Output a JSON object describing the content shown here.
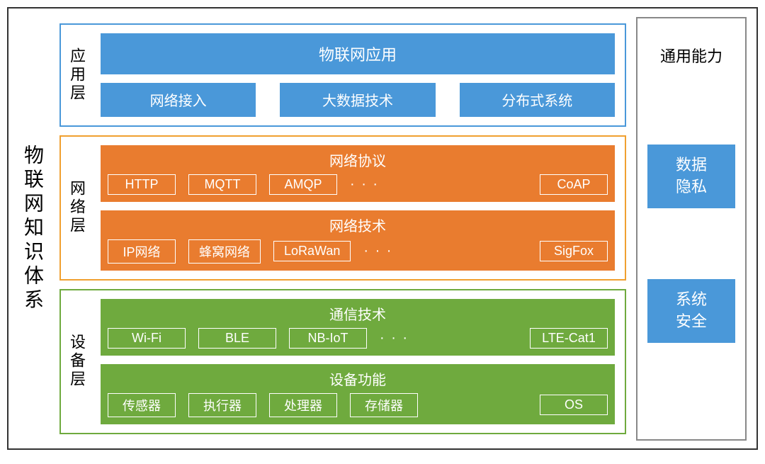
{
  "diagram": {
    "main_title": "物联网知识体系",
    "colors": {
      "outer_border": "#333333",
      "blue_fill": "#4a98d9",
      "blue_border": "#4a98d9",
      "orange_fill": "#e97c2f",
      "orange_border": "#f0a030",
      "green_fill": "#6faa3e",
      "green_border": "#6faa3e",
      "right_border": "#888888",
      "white": "#ffffff",
      "black": "#000000"
    },
    "font_sizes": {
      "main_title": 28,
      "layer_label": 22,
      "group_title": 20,
      "chip": 18,
      "app_box": 20,
      "right_title": 22,
      "right_box": 22
    },
    "layers": {
      "application": {
        "label": "应用层",
        "border_color": "#4a98d9",
        "top_bar": "物联网应用",
        "row": [
          "网络接入",
          "大数据技术",
          "分布式系统"
        ],
        "box_color": "#4a98d9"
      },
      "network": {
        "label": "网络层",
        "border_color": "#f0a030",
        "box_color": "#e97c2f",
        "groups": [
          {
            "title": "网络协议",
            "chips": [
              "HTTP",
              "MQTT",
              "AMQP"
            ],
            "has_ellipsis": true,
            "tail": [
              "CoAP"
            ]
          },
          {
            "title": "网络技术",
            "chips": [
              "IP网络",
              "蜂窝网络",
              "LoRaWan"
            ],
            "has_ellipsis": true,
            "tail": [
              "SigFox"
            ]
          }
        ]
      },
      "device": {
        "label": "设备层",
        "border_color": "#6faa3e",
        "box_color": "#6faa3e",
        "groups": [
          {
            "title": "通信技术",
            "chips": [
              "Wi-Fi",
              "BLE",
              "NB-IoT"
            ],
            "has_ellipsis": true,
            "tail": [
              "LTE-Cat1"
            ]
          },
          {
            "title": "设备功能",
            "chips": [
              "传感器",
              "执行器",
              "处理器",
              "存储器"
            ],
            "has_ellipsis": false,
            "tail": [
              "OS"
            ]
          }
        ]
      }
    },
    "right_panel": {
      "title": "通用能力",
      "boxes": [
        "数据\n隐私",
        "系统\n安全"
      ],
      "box_color": "#4a98d9"
    }
  }
}
